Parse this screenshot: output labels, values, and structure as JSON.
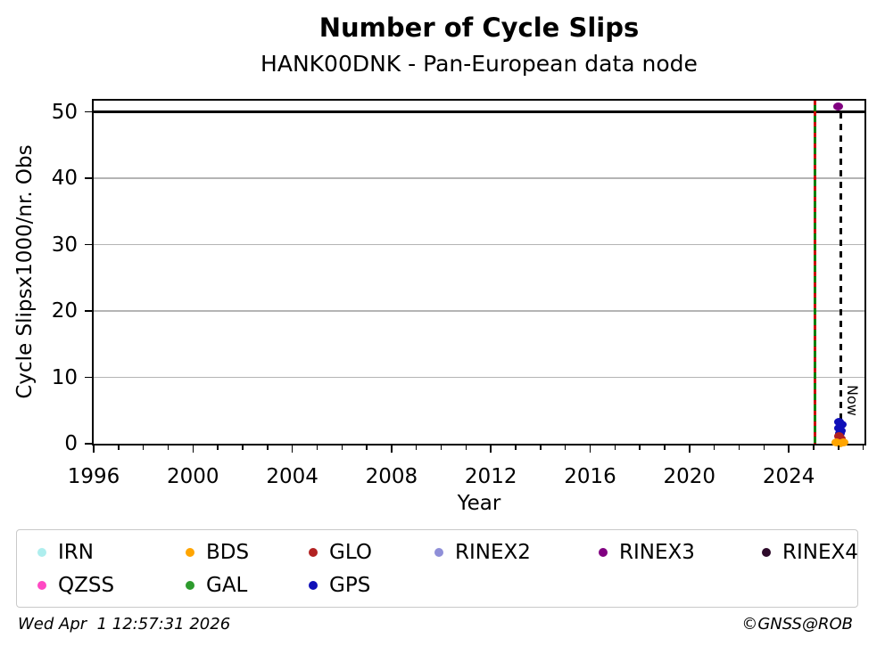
{
  "footer": {
    "timestamp": "Wed Apr  1 12:57:31 2026",
    "credit": "©GNSS@ROB"
  },
  "chart_data": {
    "type": "scatter",
    "title": "Number of Cycle Slips",
    "subtitle": "HANK00DNK - Pan-European data node",
    "xlabel": "Year",
    "ylabel": "Cycle Slipsx1000/nr. Obs",
    "xlim": [
      1996,
      2027.05
    ],
    "ylim": [
      0,
      51.7
    ],
    "xticks_major": [
      1996,
      2000,
      2004,
      2008,
      2012,
      2016,
      2020,
      2024
    ],
    "xticks_minor_step": 1,
    "yticks": [
      0,
      10,
      20,
      30,
      40,
      50
    ],
    "grid": {
      "color": "#b4b4b4",
      "yticks": [
        10,
        20,
        30,
        40
      ]
    },
    "hlines": [
      {
        "y": 50,
        "color": "#000000",
        "width": 2.5
      }
    ],
    "vlines": [
      {
        "x": 2025.05,
        "style": "green-red-dashed",
        "label": "",
        "colors": [
          "#cc0000",
          "#007f00"
        ],
        "y_top": 51.7
      },
      {
        "x": 2026.1,
        "style": "black-dashed",
        "label": "Now",
        "colors": [
          "#000000"
        ],
        "y_top": 50
      }
    ],
    "series": [
      {
        "name": "GPS",
        "color": "#0f0fb8",
        "points": [
          [
            2026.02,
            3.3
          ],
          [
            2026.12,
            2.9
          ],
          [
            2026.03,
            2.4
          ],
          [
            2026.11,
            2.0
          ],
          [
            2026.05,
            1.6
          ]
        ]
      },
      {
        "name": "GLO",
        "color": "#b22222",
        "points": [
          [
            2026.03,
            1.1
          ],
          [
            2026.11,
            0.75
          ],
          [
            2026.06,
            0.4
          ]
        ]
      },
      {
        "name": "BDS",
        "color": "#ffa500",
        "points": [
          [
            2025.93,
            0.2
          ],
          [
            2026.2,
            0.2
          ],
          [
            2026.05,
            0.1
          ]
        ]
      },
      {
        "name": "RINEX3",
        "color": "#800080",
        "points": [
          [
            2026.0,
            50.8
          ]
        ]
      }
    ],
    "legend": [
      {
        "label": "IRN",
        "color": "#aeeeee"
      },
      {
        "label": "BDS",
        "color": "#ffa500"
      },
      {
        "label": "GLO",
        "color": "#b22222"
      },
      {
        "label": "RINEX2",
        "color": "#8f8fd8"
      },
      {
        "label": "RINEX3",
        "color": "#800080"
      },
      {
        "label": "RINEX4",
        "color": "#2d0a2a"
      },
      {
        "label": "QZSS",
        "color": "#ff49c3"
      },
      {
        "label": "GAL",
        "color": "#2d9b2d"
      },
      {
        "label": "GPS",
        "color": "#0f0fb8"
      }
    ],
    "legend_position": "bottom",
    "grid_on": true
  }
}
